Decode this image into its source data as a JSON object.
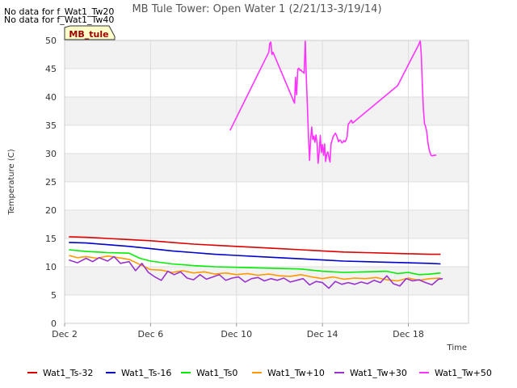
{
  "messages": [
    "No data for f_Wat1_Tw20",
    "No data for f_Wat1_Tw40"
  ],
  "site_badge": "MB_tule",
  "chart_data": {
    "type": "line",
    "title": "MB Tule Tower: Open Water 1 (2/21/13-3/19/14)",
    "xlabel": "Time",
    "ylabel": "Temperature (C)",
    "xlim": [
      2,
      20.8
    ],
    "ylim": [
      0,
      50
    ],
    "x_ticks": [
      2,
      6,
      10,
      14,
      18
    ],
    "x_tick_labels": [
      "Dec 2",
      "Dec 6",
      "Dec 10",
      "Dec 14",
      "Dec 18"
    ],
    "y_ticks": [
      0,
      5,
      10,
      15,
      20,
      25,
      30,
      35,
      40,
      45,
      50
    ],
    "series": [
      {
        "name": "Wat1_Ts-32",
        "color": "#dd0000",
        "x": [
          2.2,
          3,
          4,
          5,
          6,
          7,
          8,
          9,
          10,
          11,
          12,
          13,
          14,
          15,
          16,
          17,
          18,
          19,
          19.5
        ],
        "y": [
          15.3,
          15.2,
          15.0,
          14.8,
          14.6,
          14.3,
          14.0,
          13.8,
          13.6,
          13.4,
          13.2,
          13.0,
          12.8,
          12.6,
          12.5,
          12.4,
          12.3,
          12.2,
          12.2
        ]
      },
      {
        "name": "Wat1_Ts-16",
        "color": "#0000cc",
        "x": [
          2.2,
          3,
          4,
          5,
          6,
          7,
          8,
          9,
          10,
          11,
          12,
          13,
          14,
          15,
          16,
          17,
          18,
          19,
          19.5
        ],
        "y": [
          14.3,
          14.2,
          13.9,
          13.6,
          13.2,
          12.8,
          12.5,
          12.2,
          12.0,
          11.8,
          11.6,
          11.4,
          11.2,
          11.0,
          10.9,
          10.8,
          10.7,
          10.6,
          10.5
        ]
      },
      {
        "name": "Wat1_Ts0",
        "color": "#00ee00",
        "x": [
          2.2,
          3,
          4,
          5,
          5.5,
          6,
          7,
          8,
          9,
          10,
          11,
          12,
          13,
          14,
          15,
          16,
          17,
          17.5,
          18,
          18.5,
          19,
          19.5
        ],
        "y": [
          13.0,
          12.7,
          12.5,
          12.4,
          11.5,
          11.0,
          10.5,
          10.2,
          10.0,
          9.9,
          9.8,
          9.7,
          9.6,
          9.2,
          9.0,
          9.1,
          9.2,
          8.8,
          9.0,
          8.6,
          8.7,
          8.9
        ]
      },
      {
        "name": "Wat1_Tw+10",
        "color": "#ff9900",
        "x": [
          2.2,
          2.6,
          3,
          3.5,
          4,
          4.5,
          5,
          5.5,
          6,
          6.5,
          7,
          7.5,
          8,
          8.5,
          9,
          9.5,
          10,
          10.5,
          11,
          11.5,
          12,
          12.5,
          13,
          13.5,
          14,
          14.5,
          15,
          15.5,
          16,
          16.5,
          17,
          17.5,
          18,
          18.5,
          19,
          19.5
        ],
        "y": [
          12.0,
          11.6,
          11.8,
          11.5,
          11.9,
          11.6,
          11.3,
          10.4,
          9.5,
          9.4,
          9.0,
          9.3,
          8.9,
          9.1,
          8.7,
          8.9,
          8.6,
          8.8,
          8.5,
          8.7,
          8.4,
          8.3,
          8.6,
          8.2,
          7.9,
          8.2,
          7.8,
          8.0,
          7.9,
          8.1,
          7.7,
          7.5,
          8.0,
          7.6,
          7.9,
          8.0
        ]
      },
      {
        "name": "Wat1_Tw+30",
        "color": "#9933cc",
        "x": [
          2.2,
          2.6,
          3,
          3.3,
          3.6,
          4,
          4.3,
          4.6,
          5,
          5.3,
          5.6,
          5.9,
          6.2,
          6.5,
          6.8,
          7.1,
          7.4,
          7.7,
          8,
          8.3,
          8.6,
          8.9,
          9.2,
          9.5,
          9.8,
          10.1,
          10.4,
          10.7,
          11,
          11.3,
          11.6,
          11.9,
          12.2,
          12.5,
          12.8,
          13.1,
          13.4,
          13.7,
          14,
          14.3,
          14.6,
          14.9,
          15.2,
          15.5,
          15.8,
          16.1,
          16.4,
          16.7,
          17,
          17.3,
          17.6,
          17.9,
          18.2,
          18.5,
          18.8,
          19.1,
          19.4,
          19.6
        ],
        "y": [
          11.2,
          10.7,
          11.5,
          10.9,
          11.6,
          11.0,
          11.8,
          10.6,
          10.9,
          9.3,
          10.6,
          9.0,
          8.2,
          7.6,
          9.2,
          8.6,
          9.1,
          8.0,
          7.7,
          8.6,
          7.8,
          8.2,
          8.6,
          7.6,
          8.0,
          8.2,
          7.3,
          7.9,
          8.1,
          7.5,
          7.9,
          7.6,
          8.0,
          7.3,
          7.6,
          7.9,
          6.8,
          7.4,
          7.2,
          6.2,
          7.4,
          6.9,
          7.2,
          6.9,
          7.3,
          7.0,
          7.6,
          7.2,
          8.4,
          7.0,
          6.6,
          7.9,
          7.5,
          7.7,
          7.2,
          6.8,
          7.8,
          7.9
        ]
      },
      {
        "name": "Wat1_Tw+50",
        "color": "#ff33ff",
        "x": [
          9.7,
          11.5,
          11.55,
          11.6,
          11.65,
          11.7,
          12.7,
          12.75,
          12.8,
          12.85,
          12.9,
          12.95,
          13.0,
          13.05,
          13.1,
          13.15,
          13.2,
          13.25,
          13.3,
          13.35,
          13.4,
          13.45,
          13.5,
          13.55,
          13.6,
          13.65,
          13.7,
          13.75,
          13.8,
          13.85,
          13.9,
          13.95,
          14.0,
          14.05,
          14.1,
          14.15,
          14.2,
          14.25,
          14.3,
          14.35,
          14.4,
          14.45,
          14.5,
          14.55,
          14.6,
          14.65,
          14.7,
          14.75,
          14.8,
          14.85,
          14.9,
          14.95,
          15.0,
          15.05,
          15.1,
          15.15,
          15.2,
          15.25,
          15.3,
          15.35,
          15.4,
          17.5,
          18.5,
          18.55,
          18.6,
          18.65,
          18.7,
          18.75,
          18.8,
          18.85,
          18.9,
          18.95,
          19.0,
          19.05,
          19.1,
          19.2,
          19.3
        ],
        "y": [
          34.1,
          47.9,
          49.5,
          49.7,
          47.5,
          47.9,
          38.9,
          43.5,
          40.4,
          44.9,
          45.1,
          44.7,
          44.8,
          44.5,
          44.4,
          44.2,
          50.0,
          43.5,
          38.5,
          33.0,
          28.8,
          32.5,
          34.7,
          32.5,
          33.1,
          32.0,
          33.3,
          31.8,
          28.3,
          30.4,
          33.2,
          30.2,
          31.6,
          29.7,
          31.7,
          28.6,
          29.9,
          30.3,
          29.4,
          28.5,
          31.7,
          32.3,
          33.0,
          33.3,
          33.6,
          33.3,
          32.7,
          32.1,
          32.4,
          32.3,
          31.9,
          32.0,
          32.3,
          32.1,
          32.4,
          33.0,
          35.2,
          35.4,
          35.7,
          35.9,
          35.4,
          42.0,
          49.4,
          50.0,
          47.5,
          42.2,
          37.9,
          35.3,
          34.8,
          34.0,
          32.2,
          31.0,
          30.3,
          29.7,
          29.6,
          29.7,
          29.7
        ]
      }
    ]
  }
}
